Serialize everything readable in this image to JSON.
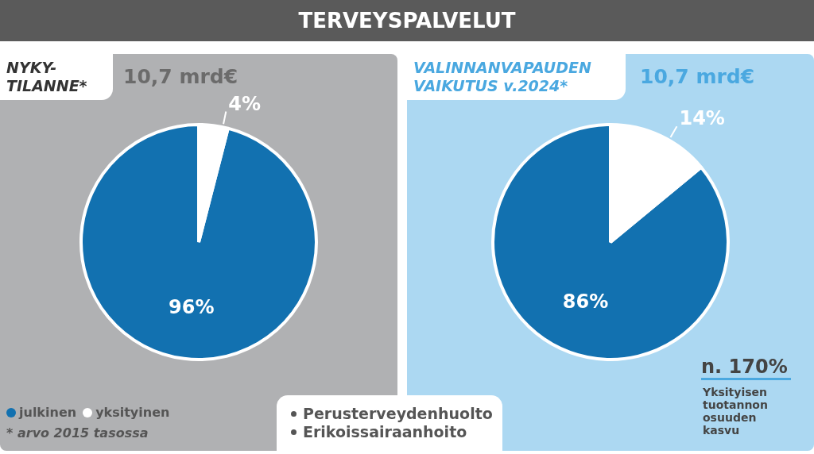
{
  "chart_data": [
    {
      "type": "pie",
      "title": "NYKY-TILANNE*",
      "subtitle": "10,7 mrd€",
      "categories": [
        "julkinen",
        "yksityinen"
      ],
      "values": [
        96,
        4
      ],
      "value_labels": [
        "96%",
        "4%"
      ],
      "colors": [
        "#1271b0",
        "#ffffff"
      ],
      "legend": "bottom left",
      "annotations": [
        "* arvo 2015 tasossa"
      ]
    },
    {
      "type": "pie",
      "title": "VALINNANVAPAUDEN VAIKUTUS v.2024*",
      "subtitle": "10,7 mrd€",
      "categories": [
        null,
        null
      ],
      "values": [
        86,
        14
      ],
      "value_labels": [
        "86%",
        "14%"
      ],
      "colors": [
        "#1271b0",
        "#ffffff"
      ],
      "annotations": [
        "n. 170%",
        "Yksityisen tuotannon osuuden kasvu"
      ]
    },
    {
      "type": "other",
      "title": "TERVEYSPALVELUT",
      "annotations": [
        "Perusterveydenhuolto",
        "Erikoissairaanhoito"
      ]
    }
  ]
}
